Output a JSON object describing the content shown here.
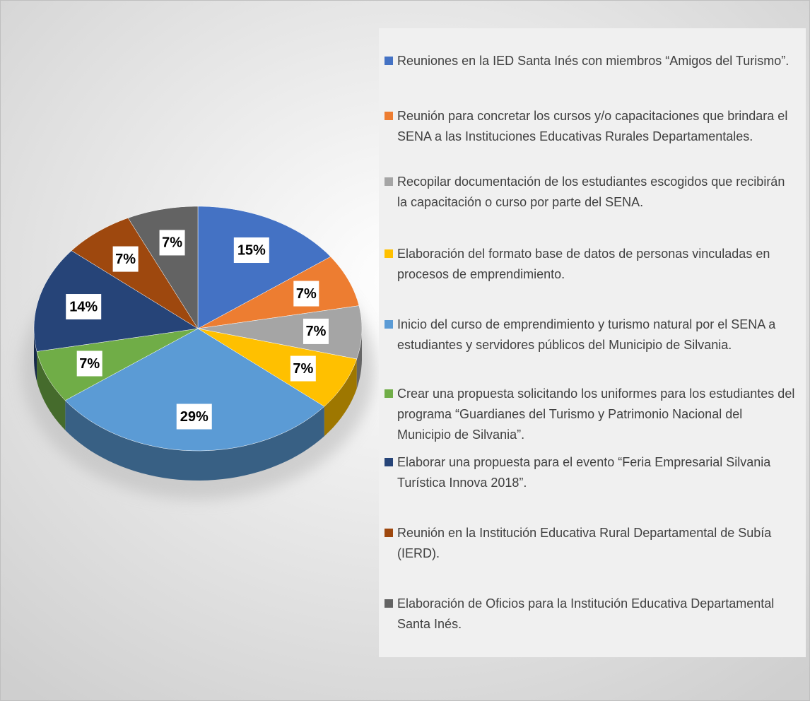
{
  "chart_data": {
    "type": "pie",
    "categories": [
      "Reuniones en la IED Santa Inés con miembros “Amigos del Turismo”.",
      "Reunión para concretar los cursos y/o capacitaciones que brindara el SENA a las Instituciones Educativas Rurales Departamentales.",
      "Recopilar documentación de los estudiantes escogidos que recibirán la capacitación o curso por parte del SENA.",
      "Elaboración del formato base de datos de personas vinculadas en procesos de emprendimiento.",
      "Inicio del curso de emprendimiento y turismo natural por el SENA a estudiantes y servidores públicos del Municipio de Silvania.",
      "Crear una propuesta solicitando los uniformes para los estudiantes del programa “Guardianes del Turismo y Patrimonio Nacional del Municipio de Silvania”.",
      "Elaborar una propuesta para el evento “Feria Empresarial Silvania Turística Innova 2018”.",
      "Reunión en la Institución Educativa Rural Departamental de Subía (IERD).",
      "Elaboración de Oficios para la Institución Educativa Departamental Santa Inés."
    ],
    "values": [
      15,
      7,
      7,
      7,
      29,
      7,
      14,
      7,
      7
    ],
    "value_labels": [
      "15%",
      "7%",
      "7%",
      "7%",
      "29%",
      "7%",
      "14%",
      "7%",
      "7%"
    ],
    "colors": [
      "#4472c4",
      "#ed7d31",
      "#a5a5a5",
      "#ffc000",
      "#5b9bd5",
      "#70ad47",
      "#264478",
      "#9e480e",
      "#636363"
    ],
    "legend": "right"
  }
}
